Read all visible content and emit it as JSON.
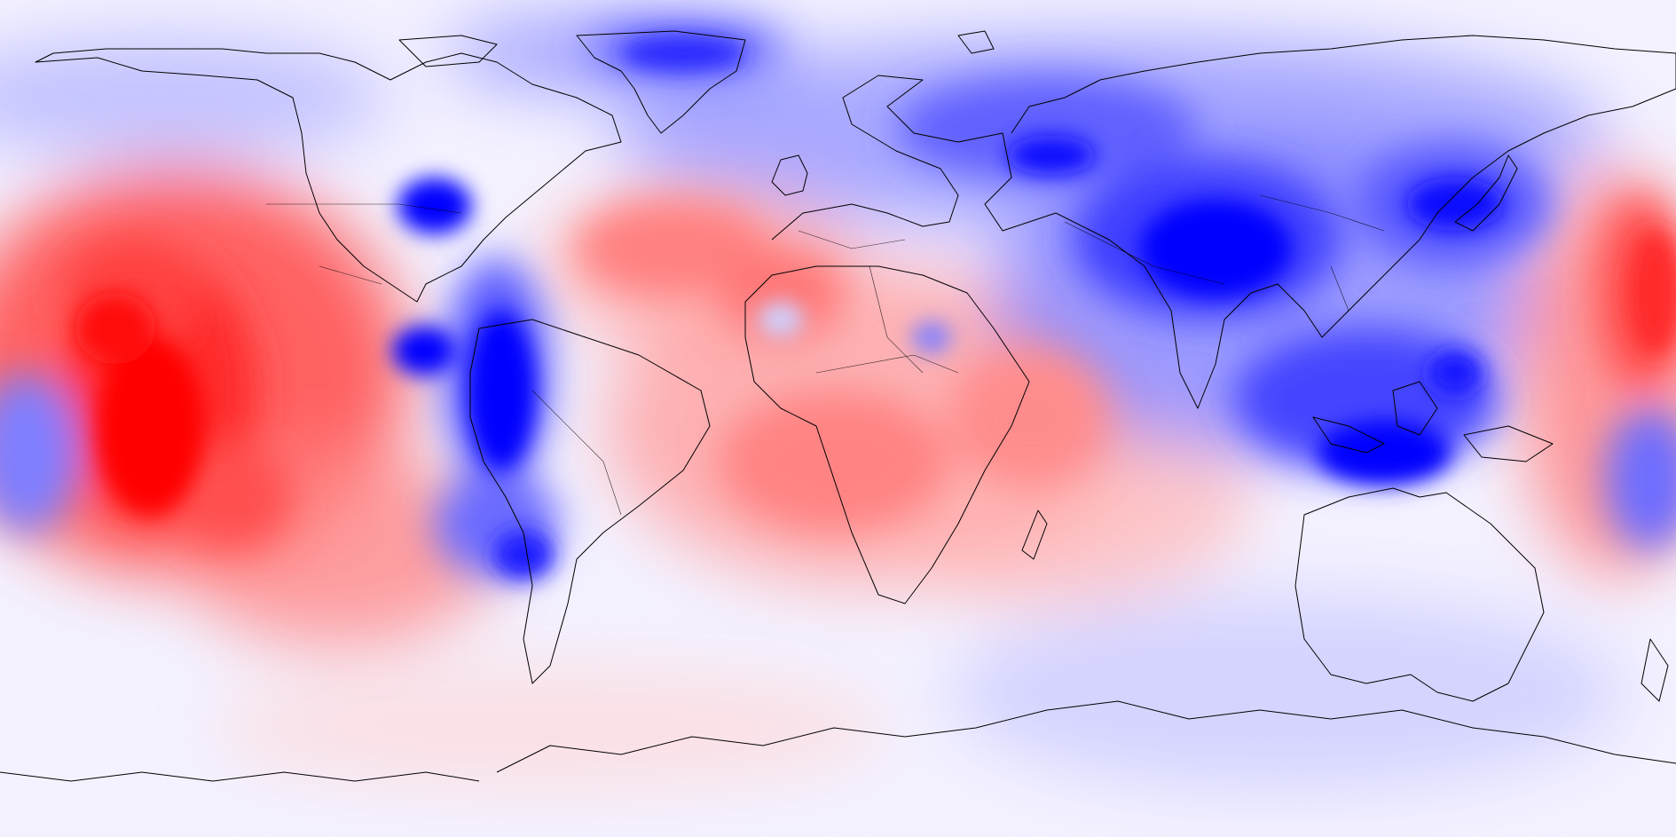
{
  "map": {
    "projection": "equirectangular",
    "colormap": "bwr",
    "colors": {
      "strong_negative": "#0000ff",
      "neutral": "#ffffff",
      "strong_positive": "#ff0000",
      "coastline": "#000000"
    },
    "anomaly_regions": [
      {
        "area": "tropical-pacific",
        "sign": "positive",
        "level": 1.0
      },
      {
        "area": "north-atlantic",
        "sign": "positive",
        "level": 0.4
      },
      {
        "area": "south-atlantic",
        "sign": "positive",
        "level": 0.5
      },
      {
        "area": "indian-ocean",
        "sign": "positive",
        "level": 0.4
      },
      {
        "area": "western-pacific",
        "sign": "positive",
        "level": 0.6
      },
      {
        "area": "eastern-us",
        "sign": "negative",
        "level": 1.0
      },
      {
        "area": "central-america",
        "sign": "negative",
        "level": 0.9
      },
      {
        "area": "andes",
        "sign": "negative",
        "level": 1.0
      },
      {
        "area": "tibetan-plateau",
        "sign": "negative",
        "level": 1.0
      },
      {
        "area": "siberia",
        "sign": "negative",
        "level": 0.8
      },
      {
        "area": "japan",
        "sign": "negative",
        "level": 0.9
      },
      {
        "area": "maritime-continent",
        "sign": "negative",
        "level": 1.0
      },
      {
        "area": "greenland",
        "sign": "negative",
        "level": 0.6
      },
      {
        "area": "antarctica",
        "sign": "negative",
        "level": 0.3
      }
    ]
  }
}
